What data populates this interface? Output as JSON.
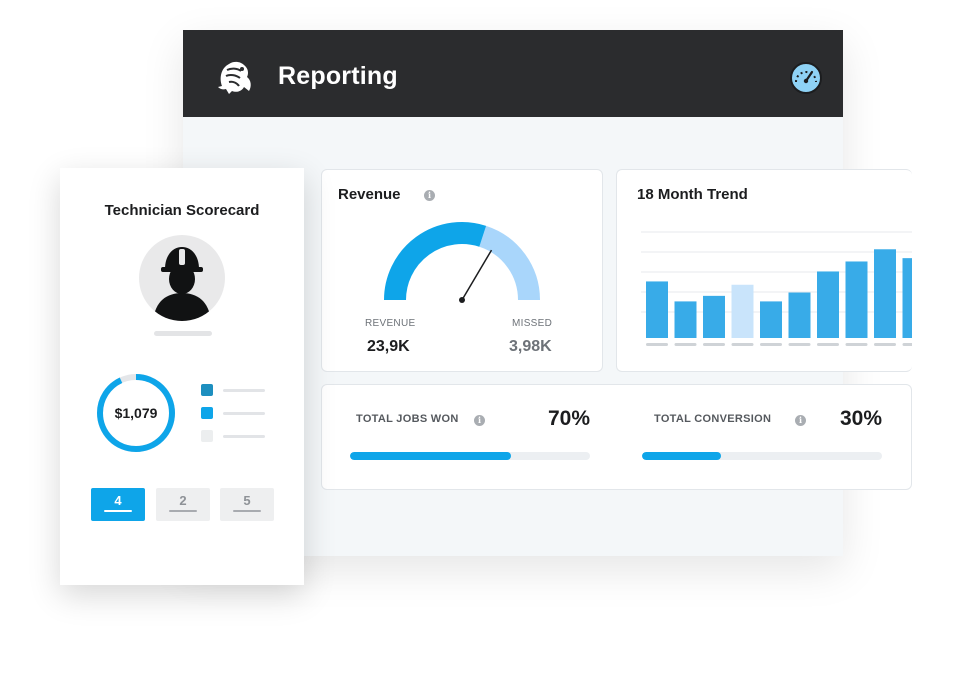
{
  "header": {
    "title": "Reporting",
    "logo_icon": "hero-logo-icon",
    "dashboard_icon": "speedometer-icon",
    "accent": "#8ed2f5"
  },
  "revenue": {
    "title": "Revenue",
    "info": "i",
    "gauge": {
      "revenue_fraction": 0.6,
      "needle_fraction": 0.67,
      "revenue_color": "#0ea5e9",
      "missed_color": "#a9d6fb"
    },
    "revenue_label": "REVENUE",
    "revenue_value": "23,9K",
    "missed_label": "MISSED",
    "missed_value": "3,98K"
  },
  "trend": {
    "title": "18 Month Trend",
    "bar_color": "#38abe8",
    "highlight_color": "#c9e4fb"
  },
  "chart_data": {
    "type": "bar",
    "title": "18 Month Trend",
    "values": [
      51,
      33,
      38,
      48,
      33,
      41,
      60,
      69,
      80,
      72
    ],
    "highlight_index": 3,
    "ylim": [
      0,
      110
    ],
    "grid": true
  },
  "kpis": [
    {
      "label": "TOTAL JOBS WON",
      "value": "70%",
      "progress": 0.67,
      "info": "i"
    },
    {
      "label": "TOTAL CONVERSION",
      "value": "30%",
      "progress": 0.33,
      "info": "i"
    }
  ],
  "scorecard": {
    "title": "Technician Scorecard",
    "avatar_icon": "technician-hardhat-icon",
    "donut": {
      "value": "$1,079",
      "fraction": 0.93,
      "color": "#0ea5e9"
    },
    "legend_colors": [
      "#1d8fbf",
      "#0ea5e9",
      "#eceeef"
    ],
    "pages": [
      {
        "label": "4",
        "active": true
      },
      {
        "label": "2",
        "active": false
      },
      {
        "label": "5",
        "active": false
      }
    ]
  }
}
